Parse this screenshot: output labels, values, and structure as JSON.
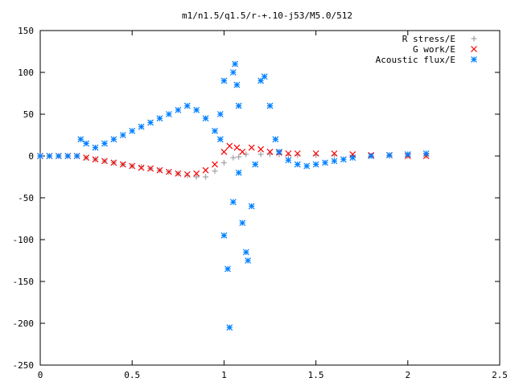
{
  "chart_data": {
    "type": "scatter",
    "title": "m1/n1.5/q1.5/r-+.10-j53/M5.0/512",
    "xlabel": "",
    "ylabel": "",
    "xlim": [
      0,
      2.5
    ],
    "ylim": [
      -250,
      150
    ],
    "x_ticks": [
      "0",
      "0.5",
      "1",
      "1.5",
      "2",
      "2.5"
    ],
    "y_ticks": [
      "150",
      "100",
      "50",
      "0",
      "-50",
      "-100",
      "-150",
      "-200",
      "-250"
    ],
    "grid": false,
    "legend_position": "top-right",
    "series": [
      {
        "name": "R stress/E",
        "marker": "plus",
        "color": "#a0a0a4",
        "points": [
          [
            0.0,
            0
          ],
          [
            0.05,
            0
          ],
          [
            0.1,
            0
          ],
          [
            0.15,
            0
          ],
          [
            0.2,
            0
          ],
          [
            0.25,
            -2
          ],
          [
            0.3,
            -4
          ],
          [
            0.35,
            -6
          ],
          [
            0.4,
            -8
          ],
          [
            0.45,
            -10
          ],
          [
            0.5,
            -12
          ],
          [
            0.55,
            -13
          ],
          [
            0.6,
            -15
          ],
          [
            0.65,
            -17
          ],
          [
            0.7,
            -19
          ],
          [
            0.75,
            -21
          ],
          [
            0.8,
            -23
          ],
          [
            0.85,
            -25
          ],
          [
            0.9,
            -25
          ],
          [
            0.95,
            -18
          ],
          [
            1.0,
            -8
          ],
          [
            1.05,
            -2
          ],
          [
            1.08,
            -1
          ],
          [
            1.12,
            2
          ],
          [
            1.2,
            2
          ],
          [
            1.25,
            2
          ],
          [
            1.3,
            2
          ],
          [
            1.35,
            1
          ],
          [
            1.4,
            1
          ],
          [
            1.5,
            1
          ],
          [
            1.6,
            1
          ],
          [
            1.7,
            0
          ],
          [
            1.8,
            0
          ],
          [
            1.9,
            0
          ],
          [
            2.0,
            0
          ],
          [
            2.1,
            0
          ]
        ]
      },
      {
        "name": "G work/E",
        "marker": "cross",
        "color": "#ff0000",
        "points": [
          [
            0.0,
            0
          ],
          [
            0.05,
            0
          ],
          [
            0.1,
            0
          ],
          [
            0.15,
            0
          ],
          [
            0.2,
            0
          ],
          [
            0.25,
            -2
          ],
          [
            0.3,
            -4
          ],
          [
            0.35,
            -6
          ],
          [
            0.4,
            -8
          ],
          [
            0.45,
            -10
          ],
          [
            0.5,
            -12
          ],
          [
            0.55,
            -14
          ],
          [
            0.6,
            -15
          ],
          [
            0.65,
            -17
          ],
          [
            0.7,
            -19
          ],
          [
            0.75,
            -21
          ],
          [
            0.8,
            -22
          ],
          [
            0.85,
            -21
          ],
          [
            0.9,
            -17
          ],
          [
            0.95,
            -10
          ],
          [
            1.0,
            5
          ],
          [
            1.03,
            12
          ],
          [
            1.07,
            10
          ],
          [
            1.1,
            5
          ],
          [
            1.15,
            10
          ],
          [
            1.2,
            8
          ],
          [
            1.25,
            5
          ],
          [
            1.3,
            4
          ],
          [
            1.35,
            3
          ],
          [
            1.4,
            3
          ],
          [
            1.5,
            3
          ],
          [
            1.6,
            3
          ],
          [
            1.7,
            2
          ],
          [
            1.8,
            1
          ],
          [
            1.9,
            1
          ],
          [
            2.0,
            0
          ],
          [
            2.1,
            0
          ]
        ]
      },
      {
        "name": "Acoustic flux/E",
        "marker": "star",
        "color": "#0080ff",
        "points": [
          [
            0.0,
            0
          ],
          [
            0.05,
            0
          ],
          [
            0.1,
            0
          ],
          [
            0.15,
            0
          ],
          [
            0.2,
            0
          ],
          [
            0.22,
            20
          ],
          [
            0.25,
            15
          ],
          [
            0.3,
            10
          ],
          [
            0.35,
            15
          ],
          [
            0.4,
            20
          ],
          [
            0.45,
            25
          ],
          [
            0.5,
            30
          ],
          [
            0.55,
            35
          ],
          [
            0.6,
            40
          ],
          [
            0.65,
            45
          ],
          [
            0.7,
            50
          ],
          [
            0.75,
            55
          ],
          [
            0.8,
            60
          ],
          [
            0.85,
            55
          ],
          [
            0.9,
            45
          ],
          [
            0.95,
            30
          ],
          [
            1.0,
            -95
          ],
          [
            1.02,
            -135
          ],
          [
            1.03,
            -205
          ],
          [
            1.05,
            -55
          ],
          [
            1.08,
            -20
          ],
          [
            1.1,
            -80
          ],
          [
            1.12,
            -115
          ],
          [
            1.15,
            -60
          ],
          [
            1.17,
            -10
          ],
          [
            1.2,
            90
          ],
          [
            1.22,
            95
          ],
          [
            1.25,
            60
          ],
          [
            1.28,
            20
          ],
          [
            1.3,
            5
          ],
          [
            1.35,
            -5
          ],
          [
            1.4,
            -10
          ],
          [
            1.45,
            -12
          ],
          [
            1.5,
            -10
          ],
          [
            1.55,
            -8
          ],
          [
            1.6,
            -6
          ],
          [
            1.65,
            -4
          ],
          [
            1.7,
            -2
          ],
          [
            1.8,
            0
          ],
          [
            1.9,
            1
          ],
          [
            2.0,
            2
          ],
          [
            2.1,
            3
          ],
          [
            0.98,
            20
          ],
          [
            0.98,
            50
          ],
          [
            1.0,
            90
          ],
          [
            1.05,
            100
          ],
          [
            1.06,
            110
          ],
          [
            1.07,
            85
          ],
          [
            1.08,
            60
          ],
          [
            1.13,
            -125
          ]
        ]
      }
    ]
  }
}
